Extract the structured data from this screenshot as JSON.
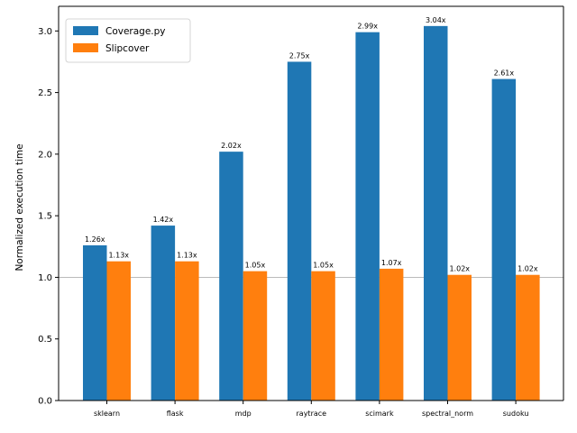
{
  "chart_data": {
    "type": "bar",
    "categories": [
      "sklearn",
      "flask",
      "mdp",
      "raytrace",
      "scimark",
      "spectral_norm",
      "sudoku"
    ],
    "series": [
      {
        "name": "Coverage.py",
        "color": "#1f77b4",
        "values": [
          1.26,
          1.42,
          2.02,
          2.75,
          2.99,
          3.04,
          2.61
        ],
        "labels": [
          "1.26x",
          "1.42x",
          "2.02x",
          "2.75x",
          "2.99x",
          "3.04x",
          "2.61x"
        ]
      },
      {
        "name": "Slipcover",
        "color": "#ff7f0e",
        "values": [
          1.13,
          1.13,
          1.05,
          1.05,
          1.07,
          1.02,
          1.02
        ],
        "labels": [
          "1.13x",
          "1.13x",
          "1.05x",
          "1.05x",
          "1.07x",
          "1.02x",
          "1.02x"
        ]
      }
    ],
    "xlabel": "",
    "ylabel": "Normalized execution time",
    "ylim": [
      0,
      3.2
    ],
    "yticks": [
      0.0,
      0.5,
      1.0,
      1.5,
      2.0,
      2.5,
      3.0
    ],
    "ytick_labels": [
      "0.0",
      "0.5",
      "1.0",
      "1.5",
      "2.0",
      "2.5",
      "3.0"
    ],
    "reference_line": {
      "y": 1.0,
      "color": "#bbbbbb"
    },
    "legend_position": "top-left",
    "grid": false
  }
}
